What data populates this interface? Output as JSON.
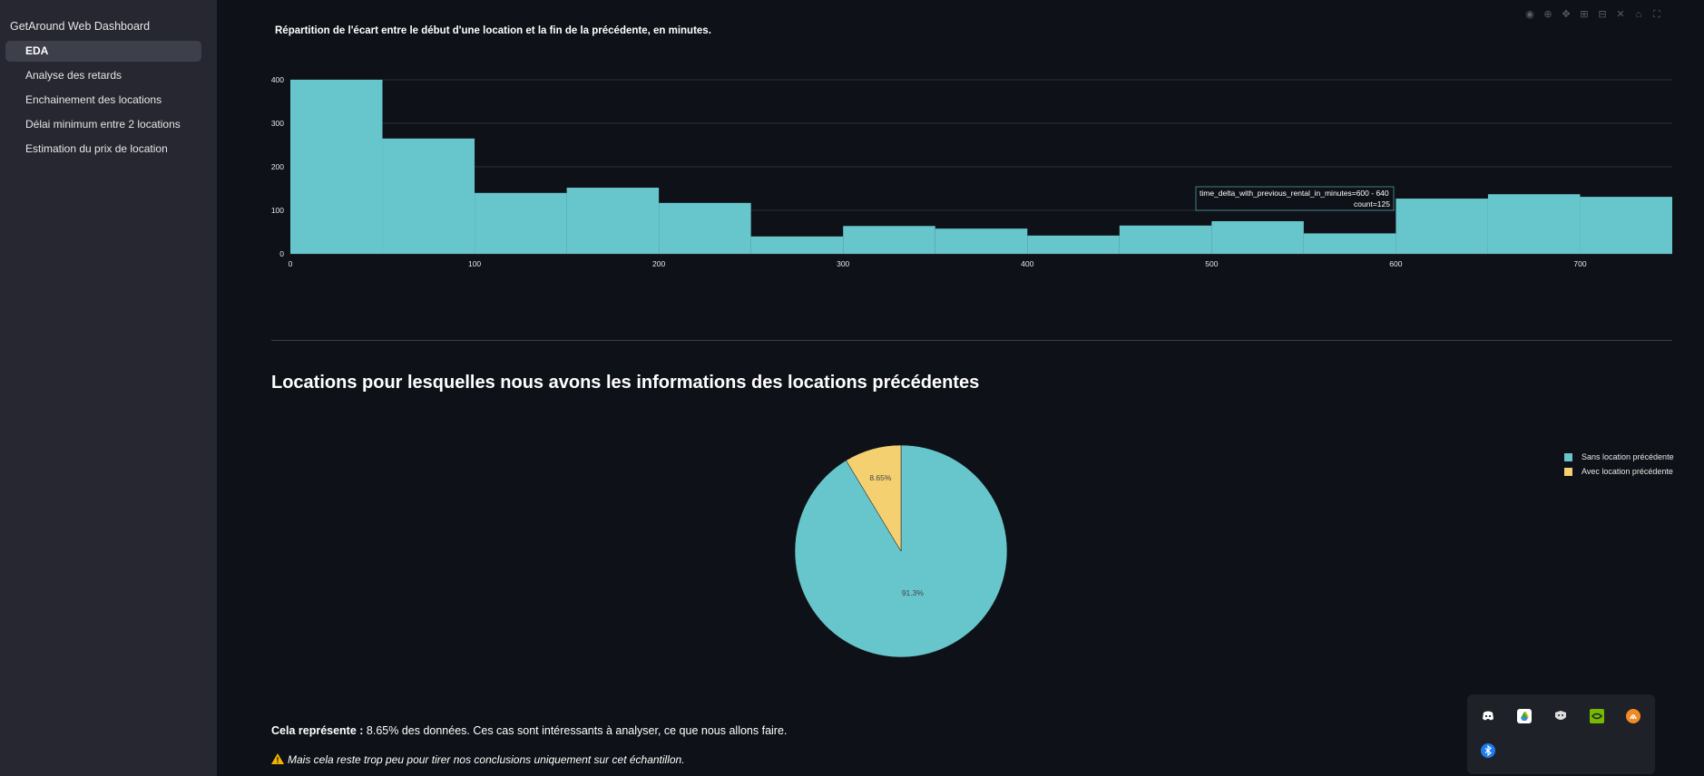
{
  "sidebar": {
    "app_title": "GetAround Web Dashboard",
    "items": [
      {
        "label": "EDA",
        "active": true,
        "icon": "chart-icon",
        "color": "#a5c8f0"
      },
      {
        "label": "Analyse des retards",
        "active": false,
        "icon": "siren-icon",
        "color": "#e8a07a"
      },
      {
        "label": "Enchainement des locations",
        "active": false,
        "icon": "link-icon",
        "color": "#4a8fd8"
      },
      {
        "label": "Délai minimum entre 2 locations",
        "active": false,
        "icon": "microscope-icon",
        "color": "#b0b8c8"
      },
      {
        "label": "Estimation du prix de location",
        "active": false,
        "icon": "money-icon",
        "color": "#6cc070"
      }
    ]
  },
  "modebar": {
    "icons": [
      "camera-icon",
      "zoom-icon",
      "pan-icon",
      "zoom-in-icon",
      "zoom-out-icon",
      "autoscale-icon",
      "home-icon",
      "fullscreen-icon"
    ]
  },
  "histogram": {
    "title": "Répartition de l'écart entre le début d'une location et la fin de la précédente, en minutes.",
    "tooltip": {
      "line1": "time_delta_with_previous_rental_in_minutes=600 - 640",
      "line2": "count=125"
    }
  },
  "section": {
    "title": "Locations pour lesquelles nous avons les informations des locations précédentes"
  },
  "chart_data": [
    {
      "type": "bar",
      "title": "Répartition de l'écart entre le début d'une location et la fin de la précédente, en minutes.",
      "bin_edges": [
        0,
        50,
        100,
        150,
        200,
        250,
        300,
        350,
        400,
        450,
        500,
        550,
        600,
        650,
        700,
        750
      ],
      "values": [
        400,
        265,
        140,
        152,
        117,
        40,
        64,
        58,
        42,
        65,
        75,
        47,
        127,
        137,
        131
      ],
      "color": "#67c5cc",
      "ylim": [
        0,
        400
      ],
      "yticks": [
        "0",
        "100",
        "200",
        "300",
        "400"
      ],
      "xlim": [
        0,
        750
      ],
      "xticks": [
        "0",
        "100",
        "200",
        "300",
        "400",
        "500",
        "600",
        "700"
      ],
      "grid": true
    },
    {
      "type": "pie",
      "slices": [
        {
          "label": "Sans location précédente",
          "value": 91.3,
          "text": "91.3%",
          "color": "#67c5cc"
        },
        {
          "label": "Avec location précédente",
          "value": 8.65,
          "text": "8.65%",
          "color": "#f5d071"
        }
      ],
      "legend": "top-right"
    }
  ],
  "text": {
    "line1_bold": "Cela représente :",
    "line1_rest": " 8.65% des données. Ces cas sont intéressants à analyser, ce que nous allons faire.",
    "line2": "Mais cela reste trop peu pour tirer nos conclusions uniquement sur cet échantillon."
  },
  "tray": {
    "icons": [
      {
        "name": "discord-icon",
        "color": "#ffffff"
      },
      {
        "name": "google-drive-icon",
        "color": "#f5c518"
      },
      {
        "name": "ppp-icon",
        "color": "#dddddd"
      },
      {
        "name": "nvidia-icon",
        "color": "#76b900"
      },
      {
        "name": "audio-relay-icon",
        "color": "#f08a24"
      },
      {
        "name": "bluetooth-icon",
        "color": "#1e7cf0"
      }
    ]
  }
}
